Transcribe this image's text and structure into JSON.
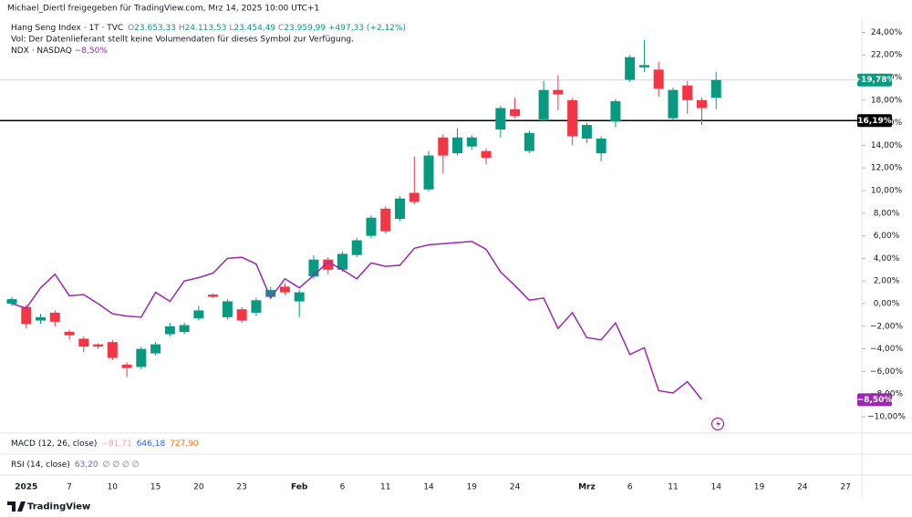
{
  "chart_data": {
    "type": "candlestick",
    "attribution": "Michael_Diertl freigegeben für TradingView.com, Mrz 14, 2025 10:00 UTC+1",
    "legend": {
      "symbol": "Hang Seng Index · 1T · TVC",
      "ohlc": [
        {
          "label": "O",
          "value": "23.653,33"
        },
        {
          "label": "H",
          "value": "24.113,53"
        },
        {
          "label": "L",
          "value": "23.454,49"
        },
        {
          "label": "C",
          "value": "23.959,99"
        }
      ],
      "change": "+497,33 (+2,12%)",
      "volume_note": "Vol: Der Datenlieferant stellt keine Volumendaten für dieses Symbol zur Verfügung.",
      "compare_symbol": "NDX · NASDAQ",
      "compare_change": "−8,50%"
    },
    "indicators": [
      {
        "name": "MACD (12, 26, close)",
        "values": [
          {
            "text": "−81,71",
            "color": "#f7a1a8"
          },
          {
            "text": "646,18",
            "color": "#2962ff"
          },
          {
            "text": "727,90",
            "color": "#ff6d00"
          }
        ]
      },
      {
        "name": "RSI (14, close)",
        "values": [
          {
            "text": "63,20",
            "color": "#7e57c2"
          },
          {
            "text": "∅ ∅ ∅ ∅",
            "color": "#787b86"
          }
        ]
      }
    ],
    "brand": "TradingView",
    "categories": [
      "",
      "2025",
      null,
      null,
      "7",
      null,
      null,
      "10",
      null,
      null,
      "15",
      null,
      null,
      "20",
      null,
      null,
      "23",
      null,
      null,
      null,
      "Feb",
      null,
      null,
      "6",
      null,
      null,
      "11",
      null,
      null,
      "14",
      null,
      null,
      "19",
      null,
      null,
      "24",
      null,
      null,
      null,
      null,
      "Mrz",
      null,
      null,
      "6",
      null,
      null,
      "11",
      null,
      null,
      "14",
      null,
      null,
      "19",
      null,
      null,
      "24",
      null,
      null,
      "27"
    ],
    "series": [
      {
        "up_color": "#089981",
        "down_color": "#f23645",
        "open": [
          0,
          -0.3,
          -1.5,
          -0.8,
          -2.5,
          -3.1,
          -3.6,
          -3.4,
          -5.4,
          -5.6,
          -4.4,
          -2.7,
          -2.5,
          -1.3,
          0.8,
          -1.2,
          -0.5,
          -0.8,
          0.6,
          1.5,
          0.2,
          2.4,
          3.9,
          3.0,
          4.3,
          6.0,
          8.4,
          7.5,
          9.8,
          10.1,
          14.7,
          13.3,
          13.9,
          13.5,
          15.4,
          17.2,
          13.5,
          16.3,
          18.9,
          18.0,
          14.6,
          13.3,
          16.1,
          19.8,
          20.9,
          20.7,
          16.4,
          19.3,
          18.0,
          18.2,
          null,
          null,
          null,
          null,
          null,
          null,
          null,
          null,
          null
        ],
        "high": [
          0.6,
          -0.1,
          -0.9,
          -0.6,
          -2.3,
          -2.9,
          -3.5,
          -3.2,
          -5.2,
          -3.8,
          -3.4,
          -1.7,
          -1.7,
          -0.2,
          0.9,
          0.4,
          -0.3,
          0.5,
          1.5,
          1.8,
          1.2,
          4.3,
          4.1,
          4.6,
          5.8,
          7.8,
          8.6,
          9.5,
          13.0,
          13.5,
          15.0,
          15.5,
          14.9,
          13.7,
          17.5,
          18.2,
          15.3,
          19.7,
          20.2,
          18.2,
          16.0,
          14.8,
          18.1,
          22.0,
          23.3,
          21.4,
          19.1,
          19.7,
          18.2,
          20.5,
          null,
          null,
          null,
          null,
          null,
          null,
          null,
          null,
          null
        ],
        "low": [
          -0.2,
          -2.2,
          -1.8,
          -2.0,
          -3.2,
          -4.3,
          -4.0,
          -5.0,
          -6.5,
          -5.8,
          -4.6,
          -2.9,
          -2.7,
          -1.5,
          0.5,
          -1.4,
          -1.7,
          -1.1,
          0.4,
          0.8,
          -1.2,
          2.2,
          2.6,
          2.8,
          4.1,
          5.8,
          6.2,
          7.3,
          8.8,
          9.9,
          11.5,
          13.1,
          13.6,
          12.3,
          14.7,
          16.4,
          13.3,
          16.1,
          17.1,
          14.0,
          14.2,
          12.6,
          15.6,
          19.6,
          20.5,
          18.3,
          16.2,
          16.8,
          15.8,
          17.2,
          null,
          null,
          null,
          null,
          null,
          null,
          null,
          null,
          null
        ],
        "close": [
          0.4,
          -1.8,
          -1.2,
          -1.6,
          -2.8,
          -3.8,
          -3.8,
          -4.8,
          -5.7,
          -4.0,
          -3.6,
          -2.0,
          -1.9,
          -0.6,
          0.6,
          0.2,
          -1.5,
          0.3,
          1.2,
          1.0,
          1.0,
          3.9,
          3.0,
          4.4,
          5.6,
          7.6,
          6.4,
          9.3,
          9.0,
          13.1,
          13.1,
          14.7,
          14.7,
          12.9,
          17.3,
          16.6,
          15.1,
          18.9,
          18.5,
          14.8,
          15.8,
          14.6,
          17.9,
          21.8,
          21.1,
          19.0,
          18.9,
          18.0,
          17.3,
          19.78,
          null,
          null,
          null,
          null,
          null,
          null,
          null,
          null,
          null
        ]
      },
      {
        "type": "line",
        "color": "#9c27b0",
        "values": [
          0.0,
          -0.4,
          1.4,
          2.6,
          0.7,
          0.8,
          0.0,
          -0.9,
          -1.1,
          -1.2,
          1.0,
          0.2,
          2.0,
          2.3,
          2.7,
          4.0,
          4.1,
          3.5,
          0.5,
          2.2,
          1.4,
          2.5,
          3.7,
          3.0,
          2.2,
          3.6,
          3.3,
          3.4,
          4.9,
          5.2,
          5.3,
          5.4,
          5.5,
          4.8,
          2.8,
          1.6,
          0.3,
          0.5,
          -2.2,
          -0.8,
          -3.0,
          -3.2,
          -1.7,
          -4.5,
          -3.9,
          -7.7,
          -7.9,
          -6.9,
          -8.5,
          null,
          null,
          null,
          null,
          null,
          null,
          null,
          null,
          null,
          null
        ]
      }
    ],
    "price_badges": [
      {
        "value": 19.78,
        "label": "+19,78%",
        "color": "#089981",
        "line_color": "#d1d4dc"
      },
      {
        "value": 16.19,
        "label": "16,19%",
        "color": "#000000",
        "line_color": "#000000"
      },
      {
        "value": -8.5,
        "label": "−8,50%",
        "color": "#9c27b0"
      }
    ],
    "ylim": [
      -11,
      24.8
    ],
    "yticks": [
      {
        "value": 24,
        "label": "24,00%"
      },
      {
        "value": 22,
        "label": "22,00%"
      },
      {
        "value": 20,
        "label": "20,00%"
      },
      {
        "value": 18,
        "label": "18,00%"
      },
      {
        "value": 16,
        "label": "16,00%"
      },
      {
        "value": 14,
        "label": "14,00%"
      },
      {
        "value": 12,
        "label": "12,00%"
      },
      {
        "value": 10,
        "label": "10,00%"
      },
      {
        "value": 8,
        "label": "8,00%"
      },
      {
        "value": 6,
        "label": "6,00%"
      },
      {
        "value": 4,
        "label": "4,00%"
      },
      {
        "value": 2,
        "label": "2,00%"
      },
      {
        "value": 0,
        "label": "0,00%"
      },
      {
        "value": -2,
        "label": "−2,00%"
      },
      {
        "value": -4,
        "label": "−4,00%"
      },
      {
        "value": -6,
        "label": "−6,00%"
      },
      {
        "value": -8,
        "label": "−8,00%"
      },
      {
        "value": -10,
        "label": "−10,00%"
      }
    ],
    "grid": false
  }
}
